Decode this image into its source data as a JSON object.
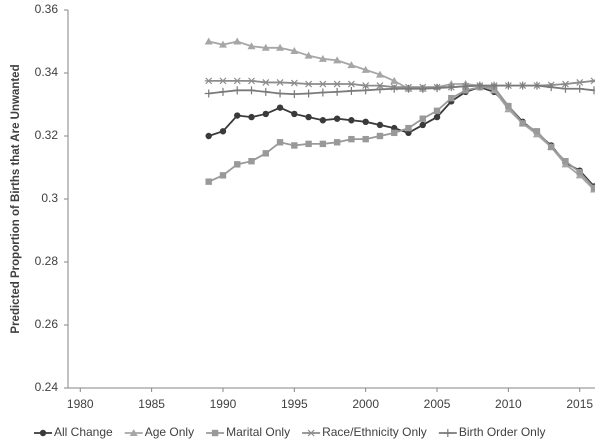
{
  "chart_data": {
    "type": "line",
    "y_label": "Predicted Proportion of Births that Are Unwanted",
    "x": [
      1989,
      1990,
      1991,
      1992,
      1993,
      1994,
      1995,
      1996,
      1997,
      1998,
      1999,
      2000,
      2001,
      2002,
      2003,
      2004,
      2005,
      2006,
      2007,
      2008,
      2009,
      2010,
      2011,
      2012,
      2013,
      2014,
      2015,
      2016
    ],
    "xlim": [
      1979,
      2016
    ],
    "xticks": [
      1980,
      1985,
      1990,
      1995,
      2000,
      2005,
      2010,
      2015
    ],
    "ylim": [
      0.24,
      0.36
    ],
    "yticks": [
      0.24,
      0.26,
      0.28,
      0.3,
      0.32,
      0.34,
      0.36
    ],
    "legend": "bottom",
    "series": [
      {
        "name": "All Change",
        "color": "#3a3a3a",
        "marker": "circle",
        "values": [
          0.32,
          0.3215,
          0.3265,
          0.326,
          0.327,
          0.329,
          0.327,
          0.326,
          0.325,
          0.3255,
          0.325,
          0.3245,
          0.3235,
          0.3225,
          0.321,
          0.3235,
          0.326,
          0.331,
          0.334,
          0.3355,
          0.334,
          0.3295,
          0.3245,
          0.321,
          0.317,
          0.3115,
          0.309,
          0.304
        ]
      },
      {
        "name": "Age Only",
        "color": "#a6a6a6",
        "marker": "triangle",
        "values": [
          0.35,
          0.349,
          0.35,
          0.3485,
          0.348,
          0.348,
          0.347,
          0.3455,
          0.3445,
          0.344,
          0.3425,
          0.341,
          0.3395,
          0.3375,
          0.335,
          0.335,
          0.3355,
          0.3365,
          0.3365,
          0.336,
          0.3345,
          0.3285,
          0.324,
          0.3205,
          0.3165,
          0.311,
          0.3075,
          0.303
        ]
      },
      {
        "name": "Marital Only",
        "color": "#999999",
        "marker": "square",
        "values": [
          0.3055,
          0.3075,
          0.311,
          0.312,
          0.3145,
          0.318,
          0.317,
          0.3175,
          0.3175,
          0.318,
          0.319,
          0.319,
          0.32,
          0.321,
          0.3225,
          0.3255,
          0.328,
          0.332,
          0.3345,
          0.3355,
          0.3355,
          0.3295,
          0.324,
          0.3215,
          0.3165,
          0.312,
          0.3085,
          0.3035
        ]
      },
      {
        "name": "Race/Ethnicity Only",
        "color": "#8c8c8c",
        "marker": "star",
        "values": [
          0.3375,
          0.3375,
          0.3375,
          0.3375,
          0.337,
          0.337,
          0.3368,
          0.3365,
          0.3365,
          0.3365,
          0.3365,
          0.336,
          0.336,
          0.3355,
          0.3355,
          0.3355,
          0.3355,
          0.3355,
          0.3358,
          0.336,
          0.336,
          0.336,
          0.336,
          0.336,
          0.3362,
          0.3365,
          0.337,
          0.3375
        ]
      },
      {
        "name": "Birth Order Only",
        "color": "#7a7a7a",
        "marker": "plus",
        "values": [
          0.3335,
          0.334,
          0.3345,
          0.3345,
          0.334,
          0.3335,
          0.3333,
          0.3335,
          0.3338,
          0.334,
          0.3343,
          0.3345,
          0.3348,
          0.335,
          0.335,
          0.335,
          0.3352,
          0.3355,
          0.3358,
          0.336,
          0.336,
          0.336,
          0.336,
          0.336,
          0.3355,
          0.335,
          0.335,
          0.3345
        ]
      }
    ]
  }
}
